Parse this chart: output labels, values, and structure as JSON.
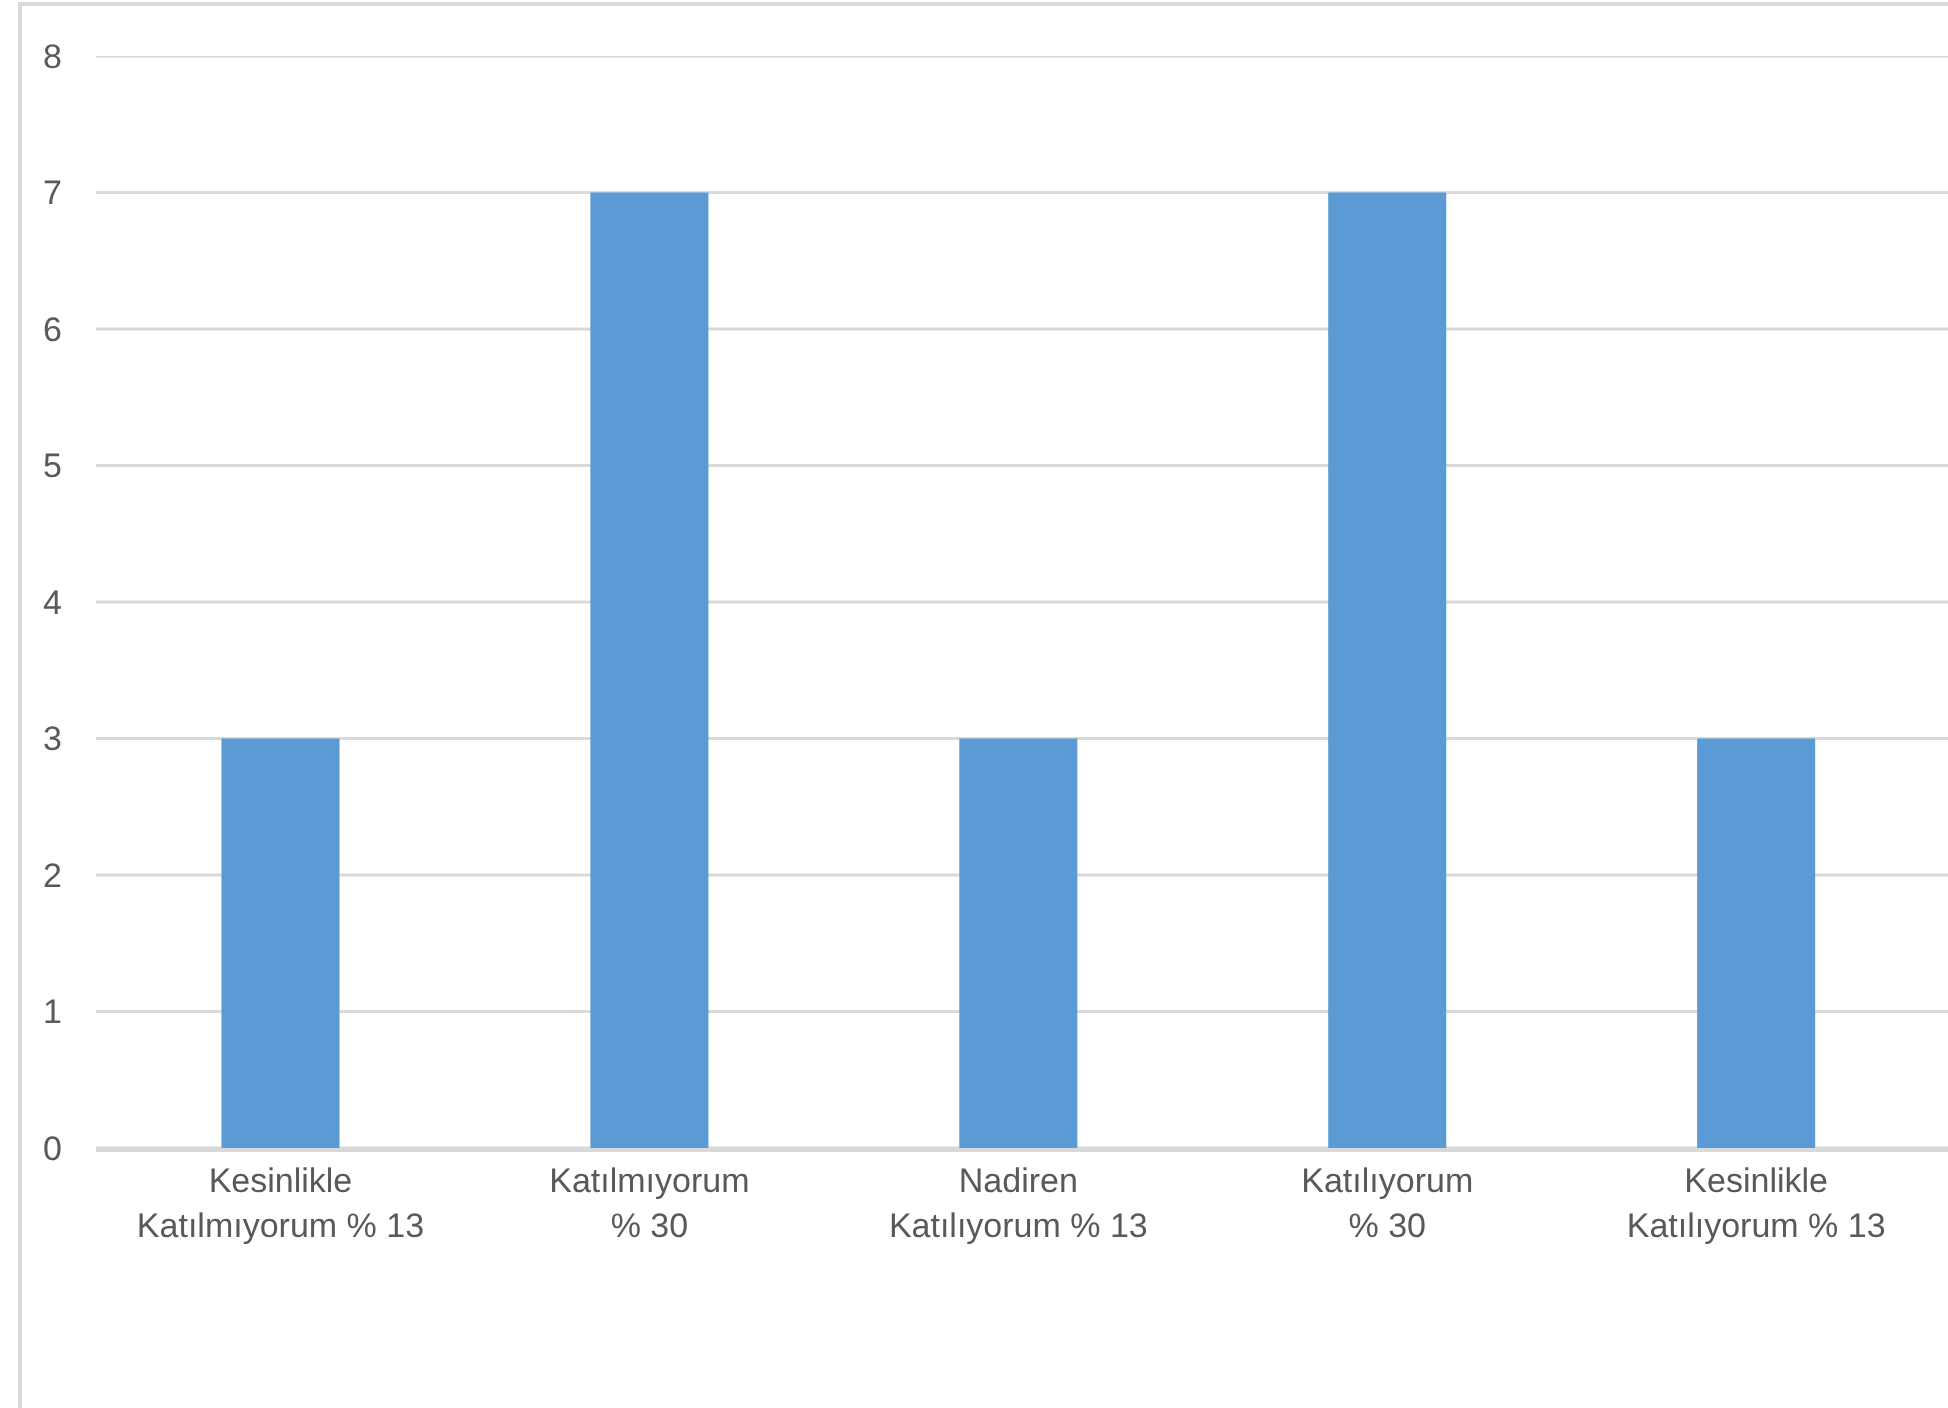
{
  "chart_data": {
    "type": "bar",
    "categories": [
      "Kesinlikle Katılmıyorum % 13",
      "Katılmıyorum % 30",
      "Nadiren Katılıyorum % 13",
      "Katılıyorum % 30",
      "Kesinlikle Katılıyorum % 13"
    ],
    "values": [
      3,
      7,
      3,
      7,
      3
    ],
    "color": "#5b9bd5",
    "ylim": [
      0,
      8
    ],
    "yticks": [
      0,
      1,
      2,
      3,
      4,
      5,
      6,
      7,
      8
    ],
    "grid": "y"
  }
}
